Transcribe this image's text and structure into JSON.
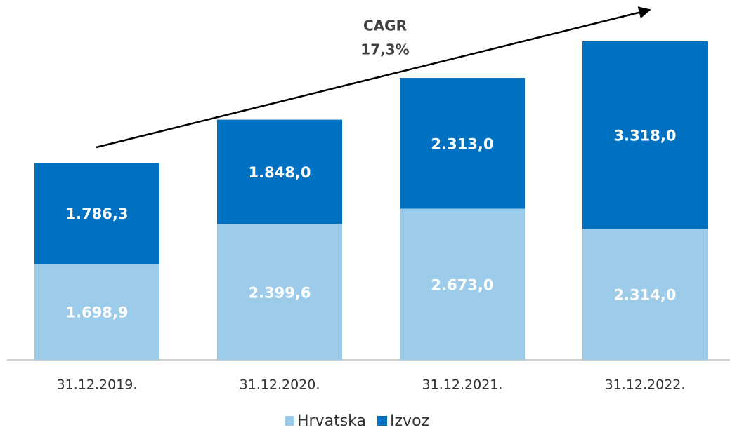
{
  "chart_data": {
    "type": "stacked_bar",
    "annotation": [
      "CAGR",
      "17,3%"
    ],
    "categories": [
      "31.12.2019.",
      "31.12.2020.",
      "31.12.2021.",
      "31.12.2022."
    ],
    "series": [
      {
        "name": "Hrvatska",
        "color": "#9dcbea",
        "values": [
          1698.9,
          2399.6,
          2673.0,
          2314.0
        ],
        "value_labels": [
          "1.698,9",
          "2.399,6",
          "2.673,0",
          "2.314,0"
        ]
      },
      {
        "name": "Izvoz",
        "color": "#0070c0",
        "values": [
          1786.3,
          1848.0,
          2313.0,
          3318.0
        ],
        "value_labels": [
          "1.786,3",
          "1.848,0",
          "2.313,0",
          "3.318,0"
        ]
      }
    ],
    "legend": "bottom"
  }
}
